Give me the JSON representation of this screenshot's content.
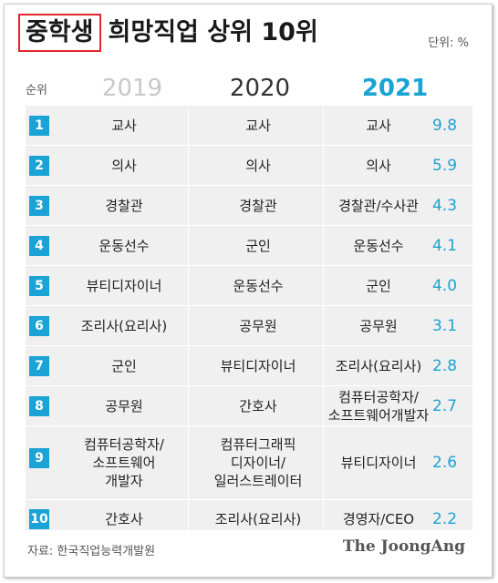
{
  "header": {
    "title_highlight": "중학생",
    "title_rest": "희망직업 상위 10위",
    "unit": "단위: %"
  },
  "columns": {
    "rank": "순위",
    "y2019": "2019",
    "y2020": "2020",
    "y2021": "2021"
  },
  "chart_data": {
    "type": "table",
    "title": "중학생 희망직업 상위 10위",
    "unit": "단위: %",
    "columns": [
      "순위",
      "2019",
      "2020",
      "2021"
    ],
    "rows": [
      {
        "rank": "1",
        "y2019": "교사",
        "y2020": "교사",
        "y2021": "교사",
        "value": "9.8"
      },
      {
        "rank": "2",
        "y2019": "의사",
        "y2020": "의사",
        "y2021": "의사",
        "value": "5.9"
      },
      {
        "rank": "3",
        "y2019": "경찰관",
        "y2020": "경찰관",
        "y2021": "경찰관/수사관",
        "value": "4.3"
      },
      {
        "rank": "4",
        "y2019": "운동선수",
        "y2020": "군인",
        "y2021": "운동선수",
        "value": "4.1"
      },
      {
        "rank": "5",
        "y2019": "뷰티디자이너",
        "y2020": "운동선수",
        "y2021": "군인",
        "value": "4.0"
      },
      {
        "rank": "6",
        "y2019": "조리사(요리사)",
        "y2020": "공무원",
        "y2021": "공무원",
        "value": "3.1"
      },
      {
        "rank": "7",
        "y2019": "군인",
        "y2020": "뷰티디자이너",
        "y2021": "조리사(요리사)",
        "value": "2.8"
      },
      {
        "rank": "8",
        "y2019": "공무원",
        "y2020": "간호사",
        "y2021": "컴퓨터공학자/\n소프트웨어개발자",
        "value": "2.7"
      },
      {
        "rank": "9",
        "y2019": "컴퓨터공학자/\n소프트웨어\n개발자",
        "y2020": "컴퓨터그래픽\n디자이너/\n일러스트레이터",
        "y2021": "뷰티디자이너",
        "value": "2.6"
      },
      {
        "rank": "10",
        "y2019": "간호사",
        "y2020": "조리사(요리사)",
        "y2021": "경영자/CEO",
        "value": "2.2"
      }
    ]
  },
  "footer": {
    "source": "자료: 한국직업능력개발원",
    "brand": "The JoongAng"
  }
}
